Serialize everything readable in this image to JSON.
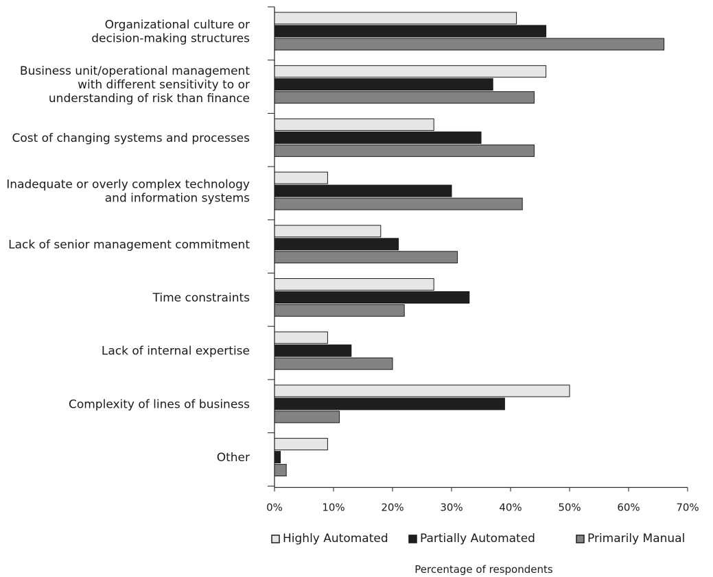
{
  "chart_data": {
    "type": "bar",
    "orientation": "horizontal",
    "title": "",
    "xlabel": "Percentage of respondents",
    "ylabel": "",
    "xlim": [
      0,
      70
    ],
    "x_ticks": [
      0,
      10,
      20,
      30,
      40,
      50,
      60,
      70
    ],
    "x_tick_labels": [
      "0%",
      "10%",
      "20%",
      "30%",
      "40%",
      "50%",
      "60%",
      "70%"
    ],
    "grid": false,
    "legend_position": "bottom",
    "categories": [
      [
        "Organizational culture or",
        "decision-making structures"
      ],
      [
        "Business unit/operational management",
        "with different sensitivity to or",
        "understanding of risk than finance"
      ],
      [
        "Cost of changing systems and processes"
      ],
      [
        "Inadequate or overly complex technology",
        "and information systems"
      ],
      [
        "Lack of senior management commitment"
      ],
      [
        "Time constraints"
      ],
      [
        "Lack of internal expertise"
      ],
      [
        "Complexity of lines of business"
      ],
      [
        "Other"
      ]
    ],
    "series": [
      {
        "name": "Highly Automated",
        "color": "#e6e6e6",
        "values": [
          41,
          46,
          27,
          9,
          18,
          27,
          9,
          50,
          9
        ]
      },
      {
        "name": "Partially Automated",
        "color": "#1e1e1e",
        "values": [
          46,
          37,
          35,
          30,
          21,
          33,
          13,
          39,
          1
        ]
      },
      {
        "name": "Primarily Manual",
        "color": "#838383",
        "values": [
          66,
          44,
          44,
          42,
          31,
          22,
          20,
          11,
          2
        ]
      }
    ]
  }
}
